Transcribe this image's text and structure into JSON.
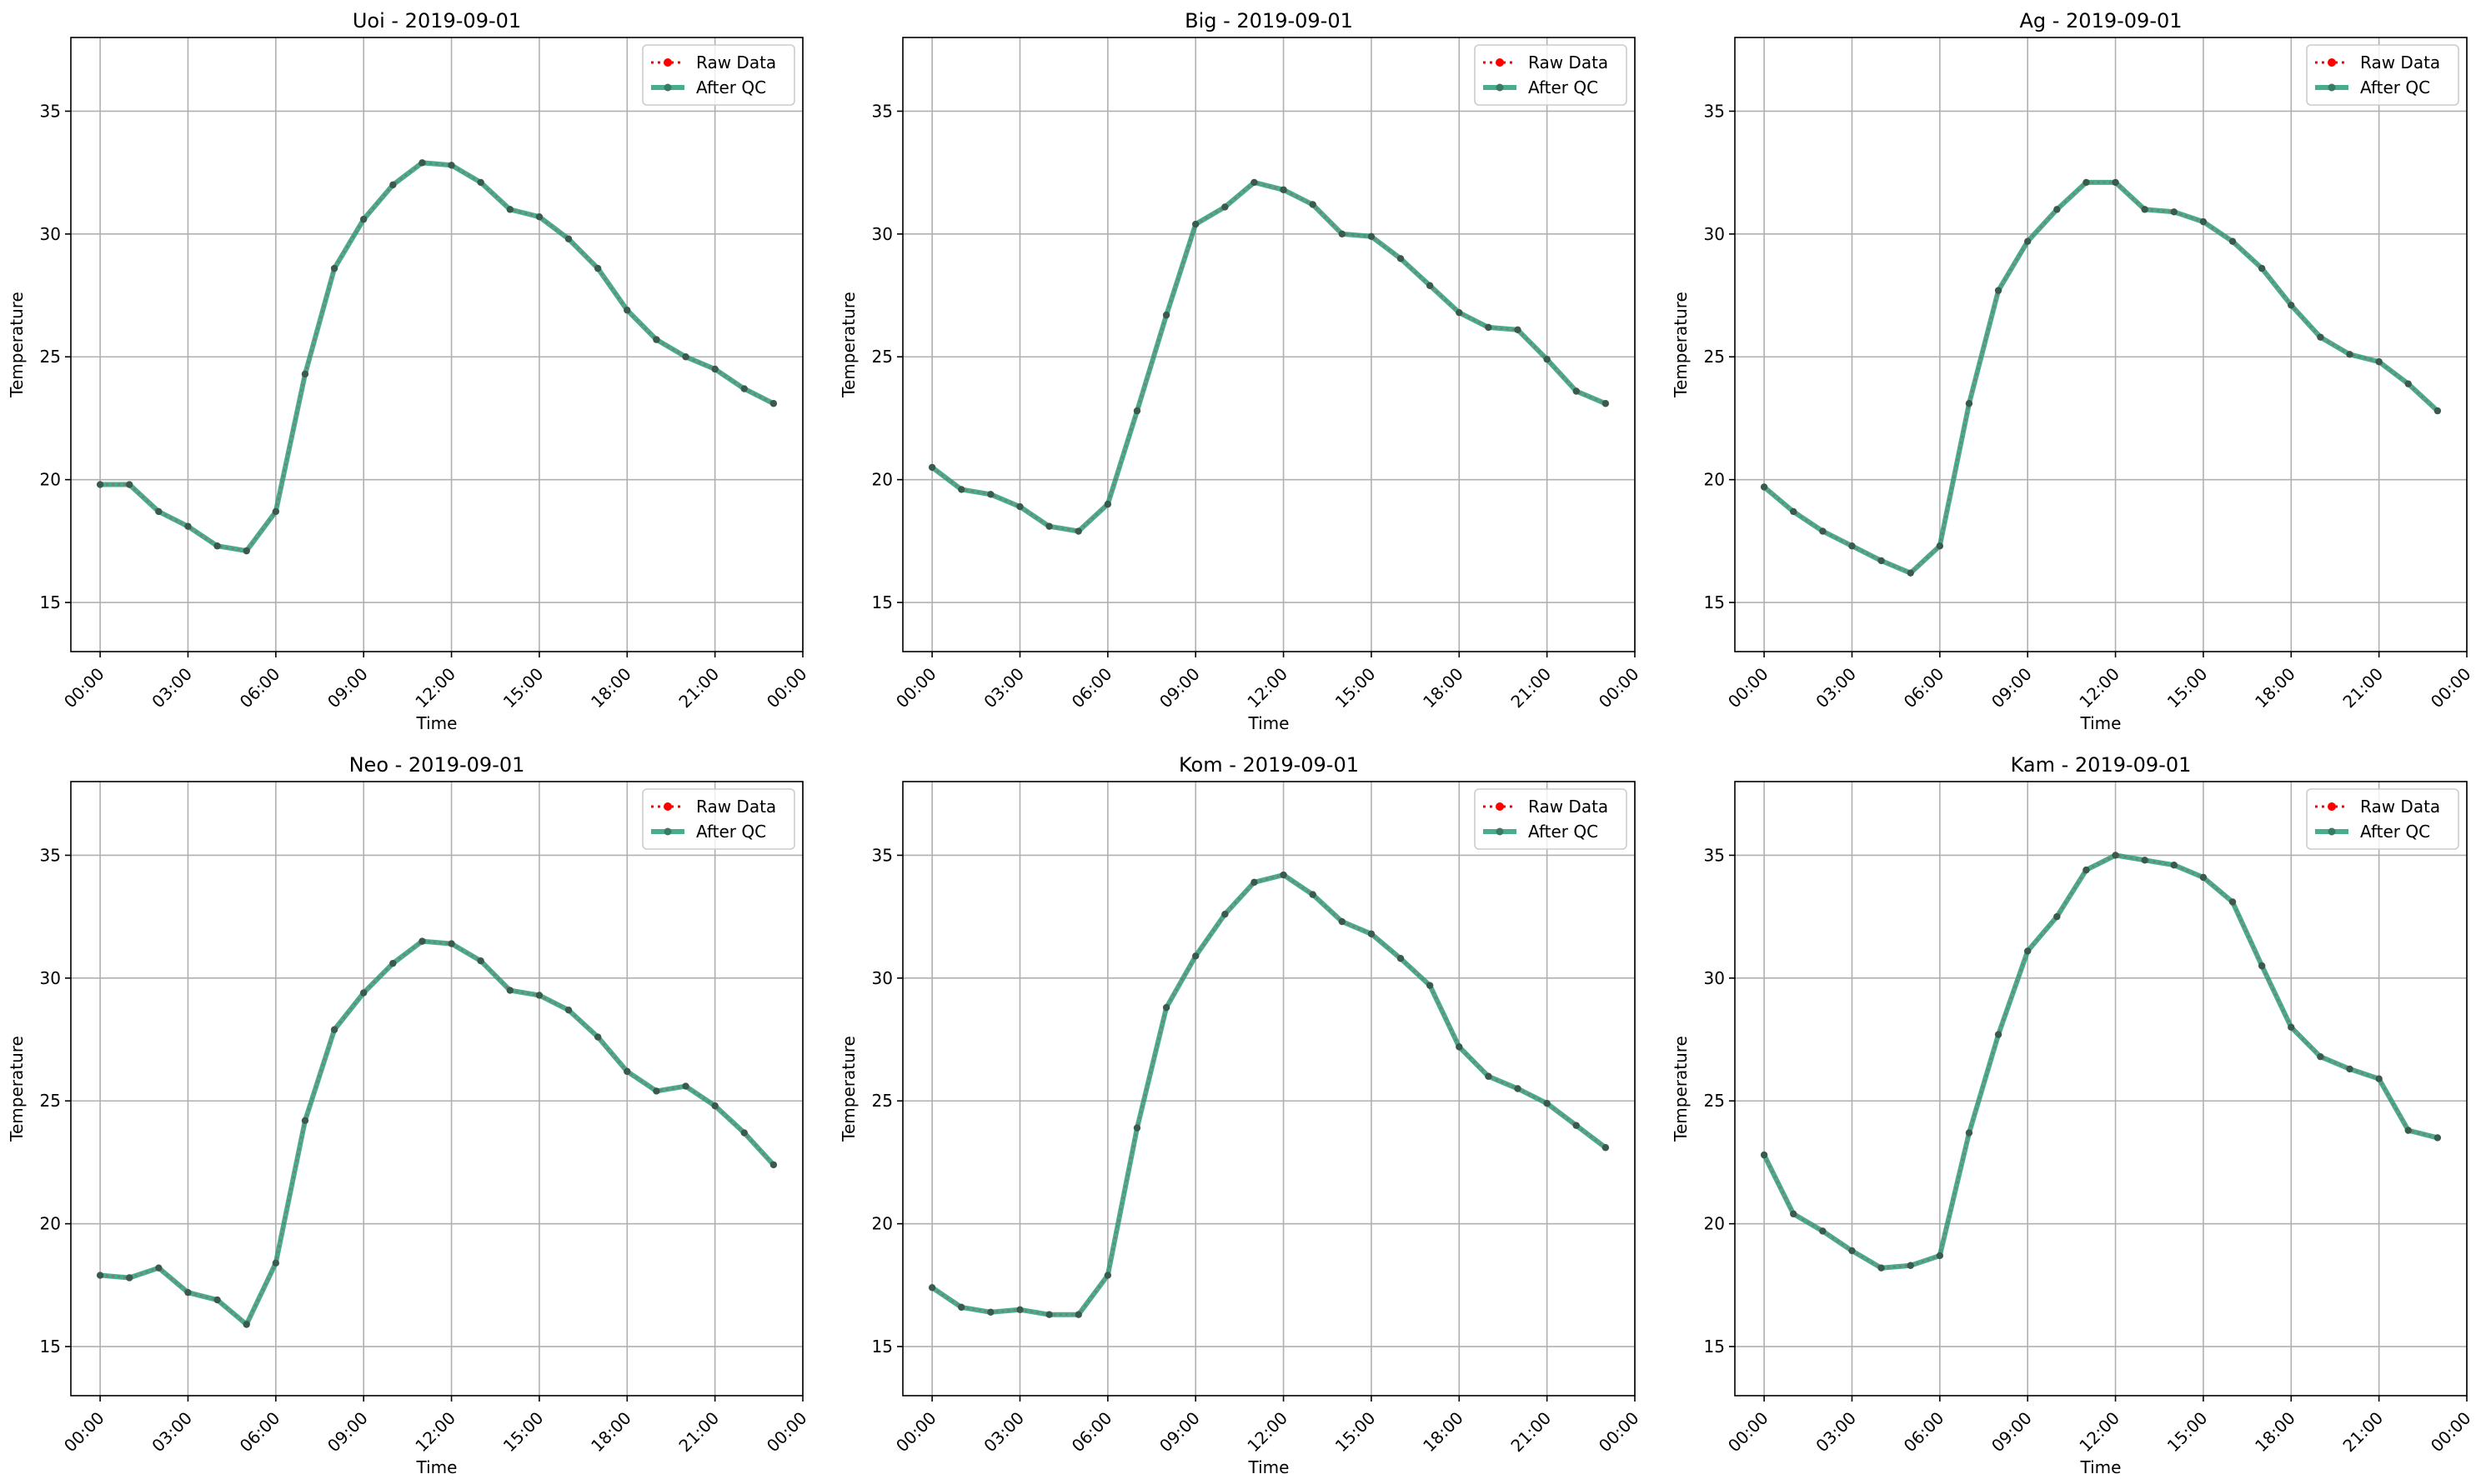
{
  "colors": {
    "raw": "#ff0000",
    "qc": "#2a9d7a",
    "grid": "#b0b0b0"
  },
  "chart_data": [
    {
      "type": "line",
      "title": "Uoi - 2019-09-01",
      "xlabel": "Time",
      "ylabel": "Temperature",
      "xlim": [
        -1.0,
        24.0
      ],
      "ylim": [
        13,
        38
      ],
      "x": [
        0,
        1,
        2,
        3,
        4,
        5,
        6,
        7,
        8,
        9,
        10,
        11,
        12,
        13,
        14,
        15,
        16,
        17,
        18,
        19,
        20,
        21,
        22,
        23
      ],
      "x_ticks": [
        0,
        3,
        6,
        9,
        12,
        15,
        18,
        21,
        24
      ],
      "x_tick_labels": [
        "00:00",
        "03:00",
        "06:00",
        "09:00",
        "12:00",
        "15:00",
        "18:00",
        "21:00",
        "00:00"
      ],
      "y_ticks": [
        15,
        20,
        25,
        30,
        35
      ],
      "y_tick_labels": [
        "15",
        "20",
        "25",
        "30",
        "35"
      ],
      "grid": true,
      "legend": "upper-right",
      "series": [
        {
          "name": "Raw Data",
          "values": [
            19.8,
            19.8,
            18.7,
            18.1,
            17.3,
            17.1,
            18.7,
            24.3,
            28.6,
            30.6,
            32.0,
            32.9,
            32.8,
            32.1,
            31.0,
            30.7,
            29.8,
            28.6,
            26.9,
            25.7,
            25.0,
            24.5,
            23.7,
            23.1
          ]
        },
        {
          "name": "After QC",
          "values": [
            19.8,
            19.8,
            18.7,
            18.1,
            17.3,
            17.1,
            18.7,
            24.3,
            28.6,
            30.6,
            32.0,
            32.9,
            32.8,
            32.1,
            31.0,
            30.7,
            29.8,
            28.6,
            26.9,
            25.7,
            25.0,
            24.5,
            23.7,
            23.1
          ]
        }
      ]
    },
    {
      "type": "line",
      "title": "Big - 2019-09-01",
      "xlabel": "Time",
      "ylabel": "Temperature",
      "xlim": [
        -1.0,
        24.0
      ],
      "ylim": [
        13,
        38
      ],
      "x": [
        0,
        1,
        2,
        3,
        4,
        5,
        6,
        7,
        8,
        9,
        10,
        11,
        12,
        13,
        14,
        15,
        16,
        17,
        18,
        19,
        20,
        21,
        22,
        23
      ],
      "x_ticks": [
        0,
        3,
        6,
        9,
        12,
        15,
        18,
        21,
        24
      ],
      "x_tick_labels": [
        "00:00",
        "03:00",
        "06:00",
        "09:00",
        "12:00",
        "15:00",
        "18:00",
        "21:00",
        "00:00"
      ],
      "y_ticks": [
        15,
        20,
        25,
        30,
        35
      ],
      "y_tick_labels": [
        "15",
        "20",
        "25",
        "30",
        "35"
      ],
      "grid": true,
      "legend": "upper-right",
      "series": [
        {
          "name": "Raw Data",
          "values": [
            20.5,
            19.6,
            19.4,
            18.9,
            18.1,
            17.9,
            19.0,
            22.8,
            26.7,
            30.4,
            31.1,
            32.1,
            31.8,
            31.2,
            30.0,
            29.9,
            29.0,
            27.9,
            26.8,
            26.2,
            26.1,
            24.9,
            23.6,
            23.1
          ]
        },
        {
          "name": "After QC",
          "values": [
            20.5,
            19.6,
            19.4,
            18.9,
            18.1,
            17.9,
            19.0,
            22.8,
            26.7,
            30.4,
            31.1,
            32.1,
            31.8,
            31.2,
            30.0,
            29.9,
            29.0,
            27.9,
            26.8,
            26.2,
            26.1,
            24.9,
            23.6,
            23.1
          ]
        }
      ]
    },
    {
      "type": "line",
      "title": "Ag - 2019-09-01",
      "xlabel": "Time",
      "ylabel": "Temperature",
      "xlim": [
        -1.0,
        24.0
      ],
      "ylim": [
        13,
        38
      ],
      "x": [
        0,
        1,
        2,
        3,
        4,
        5,
        6,
        7,
        8,
        9,
        10,
        11,
        12,
        13,
        14,
        15,
        16,
        17,
        18,
        19,
        20,
        21,
        22,
        23
      ],
      "x_ticks": [
        0,
        3,
        6,
        9,
        12,
        15,
        18,
        21,
        24
      ],
      "x_tick_labels": [
        "00:00",
        "03:00",
        "06:00",
        "09:00",
        "12:00",
        "15:00",
        "18:00",
        "21:00",
        "00:00"
      ],
      "y_ticks": [
        15,
        20,
        25,
        30,
        35
      ],
      "y_tick_labels": [
        "15",
        "20",
        "25",
        "30",
        "35"
      ],
      "grid": true,
      "legend": "upper-right",
      "series": [
        {
          "name": "Raw Data",
          "values": [
            19.7,
            18.7,
            17.9,
            17.3,
            16.7,
            16.2,
            17.3,
            23.1,
            27.7,
            29.7,
            31.0,
            32.1,
            32.1,
            31.0,
            30.9,
            30.5,
            29.7,
            28.6,
            27.1,
            25.8,
            25.1,
            24.8,
            23.9,
            22.8
          ]
        },
        {
          "name": "After QC",
          "values": [
            19.7,
            18.7,
            17.9,
            17.3,
            16.7,
            16.2,
            17.3,
            23.1,
            27.7,
            29.7,
            31.0,
            32.1,
            32.1,
            31.0,
            30.9,
            30.5,
            29.7,
            28.6,
            27.1,
            25.8,
            25.1,
            24.8,
            23.9,
            22.8
          ]
        }
      ]
    },
    {
      "type": "line",
      "title": "Neo - 2019-09-01",
      "xlabel": "Time",
      "ylabel": "Temperature",
      "xlim": [
        -1.0,
        24.0
      ],
      "ylim": [
        13,
        38
      ],
      "x": [
        0,
        1,
        2,
        3,
        4,
        5,
        6,
        7,
        8,
        9,
        10,
        11,
        12,
        13,
        14,
        15,
        16,
        17,
        18,
        19,
        20,
        21,
        22,
        23
      ],
      "x_ticks": [
        0,
        3,
        6,
        9,
        12,
        15,
        18,
        21,
        24
      ],
      "x_tick_labels": [
        "00:00",
        "03:00",
        "06:00",
        "09:00",
        "12:00",
        "15:00",
        "18:00",
        "21:00",
        "00:00"
      ],
      "y_ticks": [
        15,
        20,
        25,
        30,
        35
      ],
      "y_tick_labels": [
        "15",
        "20",
        "25",
        "30",
        "35"
      ],
      "grid": true,
      "legend": "upper-right",
      "series": [
        {
          "name": "Raw Data",
          "values": [
            17.9,
            17.8,
            18.2,
            17.2,
            16.9,
            15.9,
            18.4,
            24.2,
            27.9,
            29.4,
            30.6,
            31.5,
            31.4,
            30.7,
            29.5,
            29.3,
            28.7,
            27.6,
            26.2,
            25.4,
            25.6,
            24.8,
            23.7,
            22.4
          ]
        },
        {
          "name": "After QC",
          "values": [
            17.9,
            17.8,
            18.2,
            17.2,
            16.9,
            15.9,
            18.4,
            24.2,
            27.9,
            29.4,
            30.6,
            31.5,
            31.4,
            30.7,
            29.5,
            29.3,
            28.7,
            27.6,
            26.2,
            25.4,
            25.6,
            24.8,
            23.7,
            22.4
          ]
        }
      ]
    },
    {
      "type": "line",
      "title": "Kom - 2019-09-01",
      "xlabel": "Time",
      "ylabel": "Temperature",
      "xlim": [
        -1.0,
        24.0
      ],
      "ylim": [
        13,
        38
      ],
      "x": [
        0,
        1,
        2,
        3,
        4,
        5,
        6,
        7,
        8,
        9,
        10,
        11,
        12,
        13,
        14,
        15,
        16,
        17,
        18,
        19,
        20,
        21,
        22,
        23
      ],
      "x_ticks": [
        0,
        3,
        6,
        9,
        12,
        15,
        18,
        21,
        24
      ],
      "x_tick_labels": [
        "00:00",
        "03:00",
        "06:00",
        "09:00",
        "12:00",
        "15:00",
        "18:00",
        "21:00",
        "00:00"
      ],
      "y_ticks": [
        15,
        20,
        25,
        30,
        35
      ],
      "y_tick_labels": [
        "15",
        "20",
        "25",
        "30",
        "35"
      ],
      "grid": true,
      "legend": "upper-right",
      "series": [
        {
          "name": "Raw Data",
          "values": [
            17.4,
            16.6,
            16.4,
            16.5,
            16.3,
            16.3,
            17.9,
            23.9,
            28.8,
            30.9,
            32.6,
            33.9,
            34.2,
            33.4,
            32.3,
            31.8,
            30.8,
            29.7,
            27.2,
            26.0,
            25.5,
            24.9,
            24.0,
            23.1
          ]
        },
        {
          "name": "After QC",
          "values": [
            17.4,
            16.6,
            16.4,
            16.5,
            16.3,
            16.3,
            17.9,
            23.9,
            28.8,
            30.9,
            32.6,
            33.9,
            34.2,
            33.4,
            32.3,
            31.8,
            30.8,
            29.7,
            27.2,
            26.0,
            25.5,
            24.9,
            24.0,
            23.1
          ]
        }
      ]
    },
    {
      "type": "line",
      "title": "Kam - 2019-09-01",
      "xlabel": "Time",
      "ylabel": "Temperature",
      "xlim": [
        -1.0,
        24.0
      ],
      "ylim": [
        13,
        38
      ],
      "x": [
        0,
        1,
        2,
        3,
        4,
        5,
        6,
        7,
        8,
        9,
        10,
        11,
        12,
        13,
        14,
        15,
        16,
        17,
        18,
        19,
        20,
        21,
        22,
        23
      ],
      "x_ticks": [
        0,
        3,
        6,
        9,
        12,
        15,
        18,
        21,
        24
      ],
      "x_tick_labels": [
        "00:00",
        "03:00",
        "06:00",
        "09:00",
        "12:00",
        "15:00",
        "18:00",
        "21:00",
        "00:00"
      ],
      "y_ticks": [
        15,
        20,
        25,
        30,
        35
      ],
      "y_tick_labels": [
        "15",
        "20",
        "25",
        "30",
        "35"
      ],
      "grid": true,
      "legend": "upper-right",
      "series": [
        {
          "name": "Raw Data",
          "values": [
            22.8,
            20.4,
            19.7,
            18.9,
            18.2,
            18.3,
            18.7,
            23.7,
            27.7,
            31.1,
            32.5,
            34.4,
            35.0,
            34.8,
            34.6,
            34.1,
            33.1,
            30.5,
            28.0,
            26.8,
            26.3,
            25.9,
            23.8,
            23.5
          ]
        },
        {
          "name": "After QC",
          "values": [
            22.8,
            20.4,
            19.7,
            18.9,
            18.2,
            18.3,
            18.7,
            23.7,
            27.7,
            31.1,
            32.5,
            34.4,
            35.0,
            34.8,
            34.6,
            34.1,
            33.1,
            30.5,
            28.0,
            26.8,
            26.3,
            25.9,
            23.8,
            23.5
          ]
        }
      ]
    }
  ]
}
